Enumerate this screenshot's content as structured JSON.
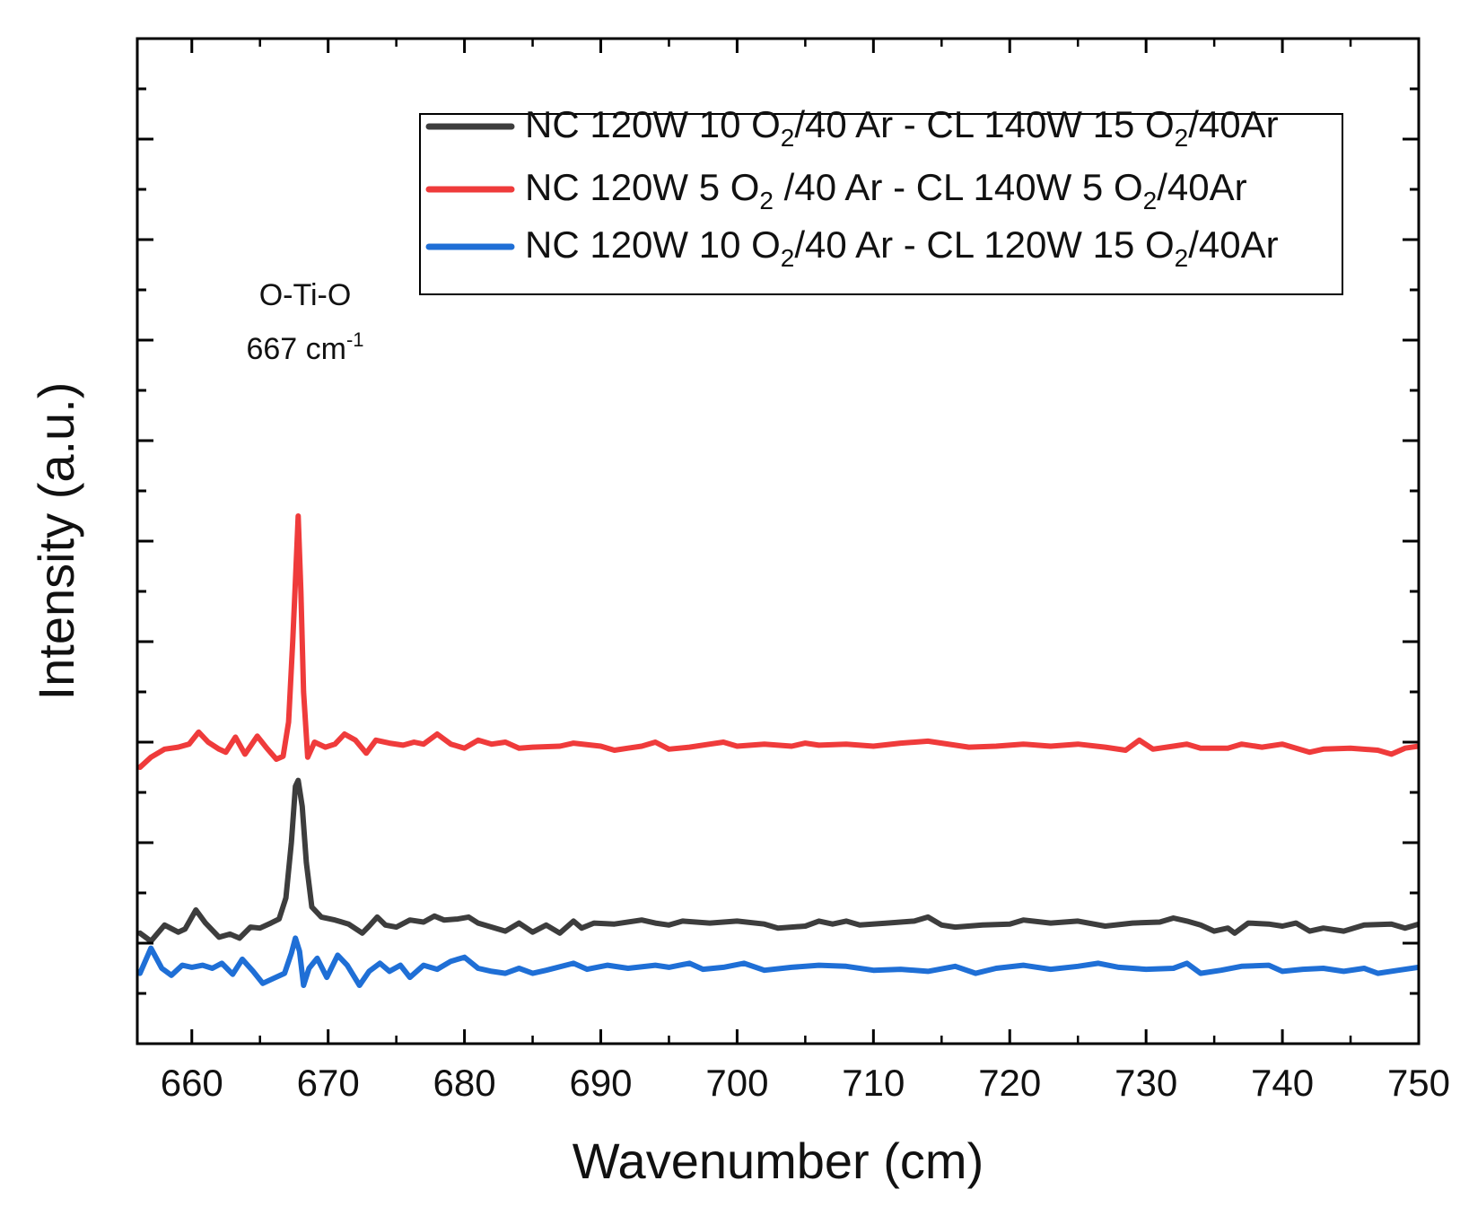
{
  "chart_data": {
    "type": "line",
    "xlabel": "Wavenumber (cm)",
    "ylabel": "Intensity (a.u.)",
    "xlim": [
      656,
      750
    ],
    "ylim": [
      0,
      100
    ],
    "xticks": [
      660,
      670,
      680,
      690,
      700,
      710,
      720,
      730,
      740,
      750
    ],
    "yticks_labeled": false,
    "grid": false,
    "legend_position": "top-right",
    "annotation": {
      "line1": "O-Ti-O",
      "line2_value": "667 cm",
      "line2_superscript": "-1",
      "x": 667
    },
    "series": [
      {
        "name": "NC 120W 10 O2/40 Ar -  CL 140W 15 O2/40Ar",
        "color": "#3d3d3d",
        "legend_parts": [
          "NC 120W 10 O",
          "2",
          "/40 Ar -  CL 140W 15 O",
          "2",
          "/40Ar"
        ],
        "baseline": 12.1,
        "points": [
          [
            656.2,
            11.0
          ],
          [
            657.0,
            10.2
          ],
          [
            658.0,
            11.8
          ],
          [
            659.0,
            11.1
          ],
          [
            659.5,
            11.4
          ],
          [
            660.3,
            13.3
          ],
          [
            661.0,
            12.0
          ],
          [
            662.0,
            10.6
          ],
          [
            662.8,
            10.9
          ],
          [
            663.5,
            10.5
          ],
          [
            664.3,
            11.6
          ],
          [
            665.0,
            11.5
          ],
          [
            665.8,
            12.0
          ],
          [
            666.4,
            12.4
          ],
          [
            666.9,
            14.5
          ],
          [
            667.3,
            20.0
          ],
          [
            667.6,
            25.6
          ],
          [
            667.8,
            26.2
          ],
          [
            668.1,
            23.6
          ],
          [
            668.4,
            18.0
          ],
          [
            668.8,
            13.6
          ],
          [
            669.5,
            12.6
          ],
          [
            670.5,
            12.3
          ],
          [
            671.5,
            11.9
          ],
          [
            672.5,
            11.0
          ],
          [
            673.0,
            11.7
          ],
          [
            673.6,
            12.6
          ],
          [
            674.2,
            11.8
          ],
          [
            675.0,
            11.6
          ],
          [
            676.0,
            12.3
          ],
          [
            677.0,
            12.1
          ],
          [
            677.8,
            12.7
          ],
          [
            678.5,
            12.3
          ],
          [
            679.5,
            12.4
          ],
          [
            680.3,
            12.6
          ],
          [
            681.0,
            12.0
          ],
          [
            682.0,
            11.6
          ],
          [
            683.0,
            11.2
          ],
          [
            684.0,
            12.0
          ],
          [
            685.0,
            11.1
          ],
          [
            686.0,
            11.8
          ],
          [
            687.0,
            11.0
          ],
          [
            688.0,
            12.2
          ],
          [
            688.6,
            11.5
          ],
          [
            689.5,
            12.0
          ],
          [
            691.0,
            11.9
          ],
          [
            693.0,
            12.3
          ],
          [
            694.0,
            12.0
          ],
          [
            695.0,
            11.8
          ],
          [
            696.0,
            12.2
          ],
          [
            698.0,
            12.0
          ],
          [
            700.0,
            12.2
          ],
          [
            702.0,
            11.9
          ],
          [
            703.0,
            11.5
          ],
          [
            705.0,
            11.7
          ],
          [
            706.0,
            12.2
          ],
          [
            707.0,
            11.9
          ],
          [
            708.0,
            12.2
          ],
          [
            709.0,
            11.8
          ],
          [
            711.0,
            12.0
          ],
          [
            713.0,
            12.2
          ],
          [
            714.0,
            12.6
          ],
          [
            715.0,
            11.8
          ],
          [
            716.0,
            11.6
          ],
          [
            718.0,
            11.8
          ],
          [
            720.0,
            11.9
          ],
          [
            721.0,
            12.3
          ],
          [
            723.0,
            12.0
          ],
          [
            725.0,
            12.2
          ],
          [
            727.0,
            11.7
          ],
          [
            729.0,
            12.0
          ],
          [
            731.0,
            12.1
          ],
          [
            732.0,
            12.5
          ],
          [
            733.0,
            12.2
          ],
          [
            734.0,
            11.8
          ],
          [
            735.0,
            11.2
          ],
          [
            736.0,
            11.5
          ],
          [
            736.5,
            11.0
          ],
          [
            737.5,
            12.0
          ],
          [
            739.0,
            11.9
          ],
          [
            740.0,
            11.7
          ],
          [
            741.0,
            12.0
          ],
          [
            742.0,
            11.2
          ],
          [
            743.0,
            11.5
          ],
          [
            744.5,
            11.2
          ],
          [
            746.0,
            11.8
          ],
          [
            748.0,
            11.9
          ],
          [
            749.0,
            11.5
          ],
          [
            750.0,
            11.9
          ]
        ]
      },
      {
        "name": "NC 120W   5 O2 /40 Ar - CL 140W  5 O2/40Ar",
        "color": "#ef3b3b",
        "legend_parts": [
          "NC 120W   5 O",
          "2",
          " /40 Ar - CL 140W  5 O",
          "2",
          "/40Ar"
        ],
        "baseline": 29.5,
        "points": [
          [
            656.2,
            27.5
          ],
          [
            657.0,
            28.5
          ],
          [
            658.0,
            29.3
          ],
          [
            659.0,
            29.5
          ],
          [
            659.8,
            29.8
          ],
          [
            660.5,
            31.0
          ],
          [
            661.2,
            30.0
          ],
          [
            662.0,
            29.3
          ],
          [
            662.5,
            29.0
          ],
          [
            663.2,
            30.5
          ],
          [
            663.9,
            28.8
          ],
          [
            664.8,
            30.6
          ],
          [
            665.5,
            29.4
          ],
          [
            666.2,
            28.3
          ],
          [
            666.7,
            28.6
          ],
          [
            667.1,
            32.0
          ],
          [
            667.4,
            40.0
          ],
          [
            667.6,
            46.0
          ],
          [
            667.8,
            52.5
          ],
          [
            668.0,
            45.0
          ],
          [
            668.2,
            35.0
          ],
          [
            668.5,
            28.5
          ],
          [
            669.0,
            30.0
          ],
          [
            669.8,
            29.5
          ],
          [
            670.5,
            29.8
          ],
          [
            671.2,
            30.8
          ],
          [
            672.0,
            30.2
          ],
          [
            672.8,
            28.9
          ],
          [
            673.5,
            30.2
          ],
          [
            674.5,
            29.9
          ],
          [
            675.5,
            29.7
          ],
          [
            676.3,
            30.0
          ],
          [
            677.0,
            29.8
          ],
          [
            678.0,
            30.8
          ],
          [
            679.0,
            29.8
          ],
          [
            680.0,
            29.4
          ],
          [
            681.0,
            30.2
          ],
          [
            682.0,
            29.8
          ],
          [
            683.0,
            30.0
          ],
          [
            684.0,
            29.4
          ],
          [
            685.0,
            29.5
          ],
          [
            687.0,
            29.6
          ],
          [
            688.0,
            29.9
          ],
          [
            690.0,
            29.6
          ],
          [
            691.0,
            29.2
          ],
          [
            692.0,
            29.4
          ],
          [
            693.0,
            29.6
          ],
          [
            694.0,
            30.0
          ],
          [
            695.0,
            29.3
          ],
          [
            696.5,
            29.5
          ],
          [
            698.0,
            29.8
          ],
          [
            699.0,
            30.0
          ],
          [
            700.0,
            29.6
          ],
          [
            702.0,
            29.8
          ],
          [
            704.0,
            29.6
          ],
          [
            705.0,
            29.9
          ],
          [
            706.0,
            29.7
          ],
          [
            708.0,
            29.8
          ],
          [
            710.0,
            29.6
          ],
          [
            712.0,
            29.9
          ],
          [
            714.0,
            30.1
          ],
          [
            715.0,
            29.9
          ],
          [
            717.0,
            29.5
          ],
          [
            719.0,
            29.6
          ],
          [
            721.0,
            29.8
          ],
          [
            723.0,
            29.6
          ],
          [
            725.0,
            29.8
          ],
          [
            727.0,
            29.5
          ],
          [
            728.5,
            29.2
          ],
          [
            729.5,
            30.2
          ],
          [
            730.5,
            29.3
          ],
          [
            732.0,
            29.6
          ],
          [
            733.0,
            29.8
          ],
          [
            734.0,
            29.4
          ],
          [
            736.0,
            29.4
          ],
          [
            737.0,
            29.8
          ],
          [
            738.5,
            29.5
          ],
          [
            740.0,
            29.8
          ],
          [
            741.0,
            29.4
          ],
          [
            742.0,
            29.0
          ],
          [
            743.0,
            29.3
          ],
          [
            745.0,
            29.4
          ],
          [
            747.0,
            29.2
          ],
          [
            748.0,
            28.8
          ],
          [
            749.0,
            29.4
          ],
          [
            750.0,
            29.6
          ]
        ]
      },
      {
        "name": "NC 120W 10 O2/40 Ar -  CL 120W 15 O2/40Ar",
        "color": "#1f6fd6",
        "legend_parts": [
          "NC 120W 10 O",
          "2",
          "/40 Ar -  CL 120W 15 O",
          "2",
          "/40Ar"
        ],
        "baseline": 7.7,
        "points": [
          [
            656.2,
            7.0
          ],
          [
            657.0,
            9.5
          ],
          [
            657.8,
            7.5
          ],
          [
            658.5,
            6.8
          ],
          [
            659.3,
            7.8
          ],
          [
            660.0,
            7.6
          ],
          [
            660.8,
            7.8
          ],
          [
            661.5,
            7.5
          ],
          [
            662.2,
            8.0
          ],
          [
            663.0,
            6.9
          ],
          [
            663.7,
            8.4
          ],
          [
            664.5,
            7.2
          ],
          [
            665.2,
            6.0
          ],
          [
            666.0,
            6.5
          ],
          [
            666.8,
            7.0
          ],
          [
            667.3,
            9.0
          ],
          [
            667.6,
            10.5
          ],
          [
            667.9,
            9.2
          ],
          [
            668.2,
            5.8
          ],
          [
            668.6,
            7.5
          ],
          [
            669.2,
            8.5
          ],
          [
            669.9,
            6.6
          ],
          [
            670.7,
            8.8
          ],
          [
            671.4,
            7.8
          ],
          [
            672.3,
            5.8
          ],
          [
            673.0,
            7.2
          ],
          [
            673.8,
            8.0
          ],
          [
            674.5,
            7.2
          ],
          [
            675.3,
            7.8
          ],
          [
            676.0,
            6.6
          ],
          [
            677.0,
            7.8
          ],
          [
            678.0,
            7.4
          ],
          [
            679.0,
            8.2
          ],
          [
            680.0,
            8.6
          ],
          [
            681.0,
            7.5
          ],
          [
            682.0,
            7.2
          ],
          [
            683.0,
            7.0
          ],
          [
            684.0,
            7.5
          ],
          [
            685.0,
            7.0
          ],
          [
            686.0,
            7.3
          ],
          [
            688.0,
            8.0
          ],
          [
            689.0,
            7.4
          ],
          [
            690.5,
            7.8
          ],
          [
            692.0,
            7.5
          ],
          [
            694.0,
            7.8
          ],
          [
            695.0,
            7.6
          ],
          [
            696.5,
            8.0
          ],
          [
            697.5,
            7.4
          ],
          [
            699.0,
            7.6
          ],
          [
            700.5,
            8.0
          ],
          [
            702.0,
            7.3
          ],
          [
            704.0,
            7.6
          ],
          [
            706.0,
            7.8
          ],
          [
            708.0,
            7.7
          ],
          [
            710.0,
            7.3
          ],
          [
            712.0,
            7.4
          ],
          [
            714.0,
            7.2
          ],
          [
            716.0,
            7.7
          ],
          [
            717.5,
            7.0
          ],
          [
            719.0,
            7.5
          ],
          [
            721.0,
            7.8
          ],
          [
            723.0,
            7.4
          ],
          [
            725.0,
            7.7
          ],
          [
            726.5,
            8.0
          ],
          [
            728.0,
            7.6
          ],
          [
            730.0,
            7.4
          ],
          [
            732.0,
            7.5
          ],
          [
            733.0,
            8.0
          ],
          [
            734.0,
            7.0
          ],
          [
            735.5,
            7.3
          ],
          [
            737.0,
            7.7
          ],
          [
            739.0,
            7.8
          ],
          [
            740.0,
            7.2
          ],
          [
            741.5,
            7.4
          ],
          [
            743.0,
            7.5
          ],
          [
            744.5,
            7.2
          ],
          [
            746.0,
            7.5
          ],
          [
            747.0,
            7.0
          ],
          [
            748.5,
            7.3
          ],
          [
            750.0,
            7.6
          ]
        ]
      }
    ]
  }
}
